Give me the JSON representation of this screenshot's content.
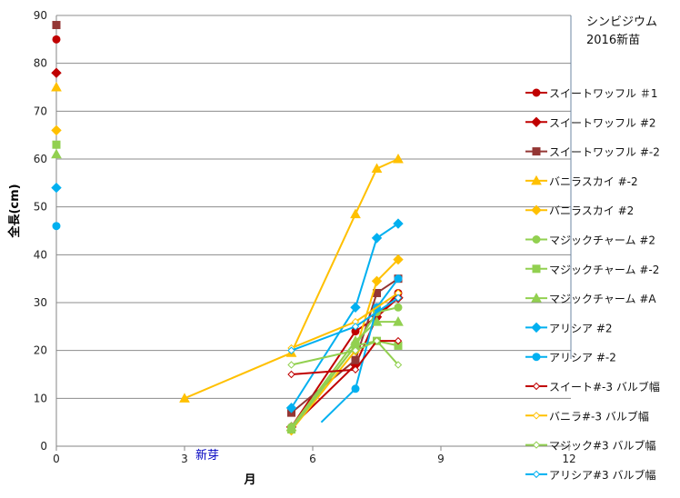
{
  "chart_data": {
    "type": "line",
    "title": [
      "シンビジウム",
      "2016新苗"
    ],
    "xlabel": "月",
    "ylabel": "全長(cm)",
    "annotation": {
      "text": "新芽",
      "color": "#0000C0"
    },
    "xlim": [
      0,
      12
    ],
    "ylim": [
      0,
      90
    ],
    "xticks": [
      0,
      3,
      6,
      9,
      12
    ],
    "yticks": [
      0,
      10,
      20,
      30,
      40,
      50,
      60,
      70,
      80,
      90
    ],
    "grid": "horizontal",
    "legend_position": "right",
    "series": [
      {
        "name": "スイートワッフル ＃1",
        "color": "#C00000",
        "marker": "circle",
        "points": [
          [
            0,
            85
          ],
          [
            5.5,
            4
          ],
          [
            7,
            24
          ],
          [
            7.5,
            27
          ],
          [
            8,
            32
          ]
        ]
      },
      {
        "name": "スイートワッフル #2",
        "color": "#C00000",
        "marker": "diamond",
        "points": [
          [
            0,
            78
          ],
          [
            5.5,
            4
          ],
          [
            7,
            17
          ],
          [
            7.5,
            27
          ],
          [
            8,
            31
          ]
        ]
      },
      {
        "name": "スイートワッフル #-2",
        "color": "#943634",
        "marker": "square",
        "points": [
          [
            0,
            88
          ],
          [
            5.5,
            7
          ],
          [
            7,
            18
          ],
          [
            7.5,
            32
          ],
          [
            8,
            35
          ]
        ]
      },
      {
        "name": "バニラスカイ #-2",
        "color": "#FFC000",
        "marker": "triangle",
        "points": [
          [
            0,
            75
          ],
          [
            3,
            10
          ],
          [
            5.5,
            19.5
          ],
          [
            7,
            48.5
          ],
          [
            7.5,
            58
          ],
          [
            8,
            60
          ]
        ]
      },
      {
        "name": "バニラスカイ #2",
        "color": "#FFC000",
        "marker": "diamond",
        "points": [
          [
            0,
            66
          ],
          [
            5.5,
            3.3
          ],
          [
            7,
            20
          ],
          [
            7.5,
            34.5
          ],
          [
            8,
            39
          ]
        ]
      },
      {
        "name": "マジックチャーム #2",
        "color": "#92D050",
        "marker": "circle",
        "points": [
          [
            5.5,
            4
          ],
          [
            7,
            21
          ],
          [
            7.5,
            28
          ],
          [
            8,
            29
          ]
        ]
      },
      {
        "name": "マジックチャーム #-2",
        "color": "#92D050",
        "marker": "square",
        "points": [
          [
            0,
            63
          ],
          [
            5.5,
            3.5
          ],
          [
            7,
            21
          ],
          [
            7.5,
            22
          ],
          [
            8,
            21
          ]
        ]
      },
      {
        "name": "マジックチャーム #A",
        "color": "#92D050",
        "marker": "triangle",
        "points": [
          [
            0,
            61
          ],
          [
            5.5,
            4
          ],
          [
            7,
            22
          ],
          [
            7.5,
            26
          ],
          [
            8,
            26
          ]
        ]
      },
      {
        "name": "アリシア #2",
        "color": "#00B0F0",
        "marker": "diamond",
        "points": [
          [
            0,
            54
          ],
          [
            5.5,
            8
          ],
          [
            7,
            29
          ],
          [
            7.5,
            43.5
          ],
          [
            8,
            46.5
          ]
        ]
      },
      {
        "name": "アリシア #-2",
        "color": "#00B0F0",
        "marker": "circle",
        "points": [
          [
            0,
            46
          ],
          [
            6.2,
            5
          ],
          [
            7,
            12
          ],
          [
            7.5,
            29
          ],
          [
            8,
            35
          ]
        ]
      },
      {
        "name": "スイート#-3 バルブ幅",
        "color": "#C00000",
        "marker": "open-diamond",
        "points": [
          [
            5.5,
            15
          ],
          [
            7,
            16
          ],
          [
            7.5,
            22
          ],
          [
            8,
            22
          ]
        ]
      },
      {
        "name": "バニラ#-3 バルブ幅",
        "color": "#FFC000",
        "marker": "open-diamond",
        "points": [
          [
            5.5,
            20.5
          ],
          [
            7,
            26
          ],
          [
            8,
            32
          ]
        ]
      },
      {
        "name": "マジック#3 バルブ幅",
        "color": "#92D050",
        "marker": "open-diamond",
        "points": [
          [
            5.5,
            17
          ],
          [
            7,
            20
          ],
          [
            7.5,
            22
          ],
          [
            8,
            17
          ]
        ]
      },
      {
        "name": "アリシア#3 バルブ幅",
        "color": "#00B0F0",
        "marker": "open-diamond",
        "points": [
          [
            5.5,
            20
          ],
          [
            7,
            25
          ],
          [
            8,
            31
          ]
        ]
      }
    ]
  }
}
